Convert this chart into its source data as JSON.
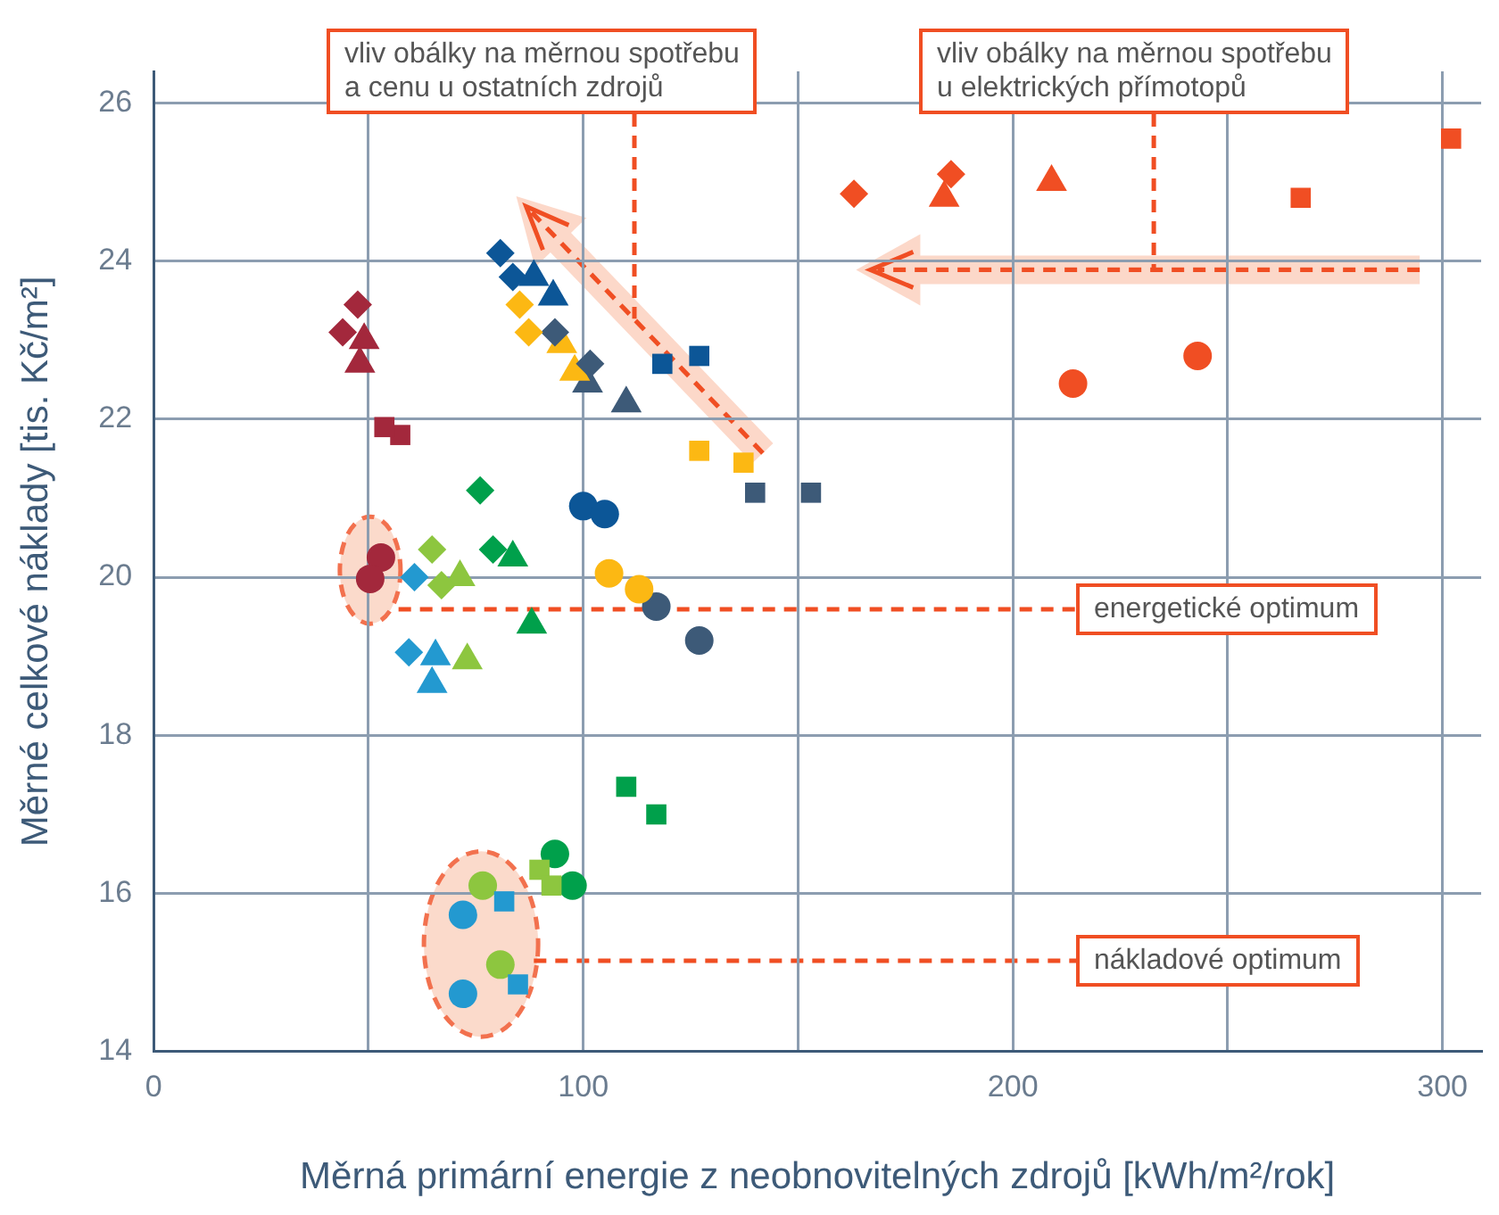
{
  "chart_data": {
    "type": "scatter",
    "xlabel": "Měrná primární energie z neobnovitelných zdrojů [kWh/m²/rok]",
    "ylabel": "Měrné celkové náklady [tis. Kč/m²]",
    "xlim": [
      0,
      309
    ],
    "ylim": [
      14,
      26.4
    ],
    "xticks": [
      0,
      {
        "value": 50,
        "label": null
      },
      100,
      {
        "value": 150,
        "label": null
      },
      200,
      {
        "value": 250,
        "label": null
      },
      300
    ],
    "yticks": [
      14,
      16,
      18,
      20,
      22,
      24,
      26
    ],
    "grid": true,
    "legend": false,
    "annotations": [
      "vliv obálky na měrnou spotřebu\na cenu u ostatních zdrojů",
      "vliv obálky na měrnou spotřebu\nu elektrických přímotopů",
      "energetické optimum",
      "nákladové optimum"
    ],
    "series": [
      {
        "marker": "diamond",
        "x": [
          44,
          83.6,
          87.3,
          101.6,
          79,
          67,
          59.4,
          185.6
        ],
        "values": [
          23.1,
          23.8,
          23.1,
          22.7,
          20.35,
          19.9,
          19.05,
          25.1
        ],
        "colors": [
          "#a3283c",
          "#0c5697",
          "#fcb813",
          "#3d5a78",
          "#00a04b",
          "#8dc63f",
          "#2399d0",
          "#f04e23"
        ]
      },
      {
        "marker": "triangle",
        "x": [
          48,
          93,
          98,
          110,
          88,
          73,
          64.8,
          209
        ],
        "values": [
          22.7,
          23.55,
          22.6,
          22.2,
          19.4,
          18.95,
          18.65,
          25
        ],
        "colors": [
          "#a3283c",
          "#0c5697",
          "#fcb813",
          "#3d5a78",
          "#00a04b",
          "#8dc63f",
          "#2399d0",
          "#f04e23"
        ]
      },
      {
        "marker": "square",
        "x": [
          53.7,
          127,
          137.3,
          153,
          117,
          92.6,
          84.8,
          302
        ],
        "values": [
          21.9,
          22.8,
          21.45,
          21.07,
          17,
          16.1,
          14.85,
          25.55
        ],
        "colors": [
          "#a3283c",
          "#0c5697",
          "#fcb813",
          "#3d5a78",
          "#00a04b",
          "#8dc63f",
          "#2399d0",
          "#f04e23"
        ]
      },
      {
        "marker": "circle",
        "x": [
          50.4,
          105,
          113,
          127,
          97.5,
          80.7,
          72,
          243
        ],
        "values": [
          19.98,
          20.8,
          19.85,
          19.2,
          16.1,
          15.1,
          14.73,
          22.8
        ],
        "colors": [
          "#a3283c",
          "#0c5697",
          "#fcb813",
          "#3d5a78",
          "#00a04b",
          "#8dc63f",
          "#2399d0",
          "#f04e23"
        ]
      },
      {
        "marker": "diamond",
        "x": [
          47.5,
          80.7,
          85.2,
          93.4,
          76,
          64.8,
          60.7,
          163
        ],
        "values": [
          23.45,
          24.1,
          23.45,
          23.1,
          21.1,
          20.35,
          20,
          24.85
        ],
        "colors": [
          "#a3283c",
          "#0c5697",
          "#fcb813",
          "#3d5a78",
          "#00a04b",
          "#8dc63f",
          "#2399d0",
          "#f04e23"
        ]
      },
      {
        "marker": "triangle",
        "x": [
          49,
          88.5,
          95,
          101,
          83.6,
          71.3,
          65.6,
          184
        ],
        "values": [
          23,
          23.8,
          22.95,
          22.45,
          20.25,
          20,
          19,
          24.8
        ],
        "colors": [
          "#a3283c",
          "#0c5697",
          "#fcb813",
          "#3d5a78",
          "#00a04b",
          "#8dc63f",
          "#2399d0",
          "#f04e23"
        ]
      },
      {
        "marker": "square",
        "x": [
          57.4,
          118.4,
          127,
          140,
          110,
          89.8,
          81.6,
          267
        ],
        "values": [
          21.8,
          22.7,
          21.6,
          21.07,
          17.35,
          16.3,
          15.9,
          24.8
        ],
        "colors": [
          "#a3283c",
          "#0c5697",
          "#fcb813",
          "#3d5a78",
          "#00a04b",
          "#8dc63f",
          "#2399d0",
          "#f04e23"
        ]
      },
      {
        "marker": "circle",
        "x": [
          52.9,
          100,
          106,
          117,
          93.4,
          76.6,
          72,
          214
        ],
        "values": [
          20.25,
          20.9,
          20.05,
          19.63,
          16.5,
          16.1,
          15.73,
          22.45
        ],
        "colors": [
          "#a3283c",
          "#0c5697",
          "#fcb813",
          "#3d5a78",
          "#00a04b",
          "#8dc63f",
          "#2399d0",
          "#f04e23"
        ]
      }
    ]
  }
}
